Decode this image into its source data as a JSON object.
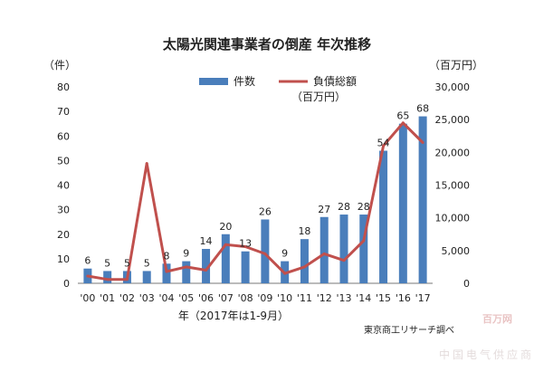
{
  "chart_data": {
    "type": "bar+line",
    "title": "太陽光関連事業者の倒産 年次推移",
    "xlabel": "年（2017年は1-9月）",
    "categories": [
      "'00",
      "'01",
      "'02",
      "'03",
      "'04",
      "'05",
      "'06",
      "'07",
      "'08",
      "'09",
      "'10",
      "'11",
      "'12",
      "'13",
      "'14",
      "'15",
      "'16",
      "'17"
    ],
    "y_left": {
      "unit_label": "（件）",
      "ylim": [
        0,
        80
      ],
      "ticks": [
        "0",
        "10",
        "20",
        "30",
        "40",
        "50",
        "60",
        "70",
        "80"
      ]
    },
    "y_right": {
      "unit_label": "（百万円）",
      "ylim": [
        0,
        30000
      ],
      "ticks": [
        "0",
        "5,000",
        "10,000",
        "15,000",
        "20,000",
        "25,000",
        "30,000"
      ]
    },
    "series": [
      {
        "name": "件数",
        "type": "bar",
        "axis": "left",
        "color": "#4a7ebb",
        "values": [
          6,
          5,
          5,
          5,
          8,
          9,
          14,
          20,
          13,
          26,
          9,
          18,
          27,
          28,
          28,
          54,
          65,
          68
        ],
        "labels": [
          "6",
          "5",
          "5",
          "5",
          "8",
          "9",
          "14",
          "20",
          "13",
          "26",
          "9",
          "18",
          "27",
          "28",
          "28",
          "54",
          "65",
          "68"
        ]
      },
      {
        "name": "負債総額",
        "name_line2": "（百万円）",
        "type": "line",
        "axis": "right",
        "color": "#c0504d",
        "values": [
          1100,
          600,
          600,
          18300,
          1800,
          2500,
          2000,
          5900,
          5600,
          4500,
          1500,
          2500,
          4500,
          3500,
          6500,
          21000,
          24500,
          21500
        ]
      }
    ],
    "legend_position": "top-center",
    "grid": false
  },
  "source_note": "東京商工リサーチ調べ",
  "watermark": {
    "line1": "百万网",
    "line2": "中国电气供应商"
  }
}
